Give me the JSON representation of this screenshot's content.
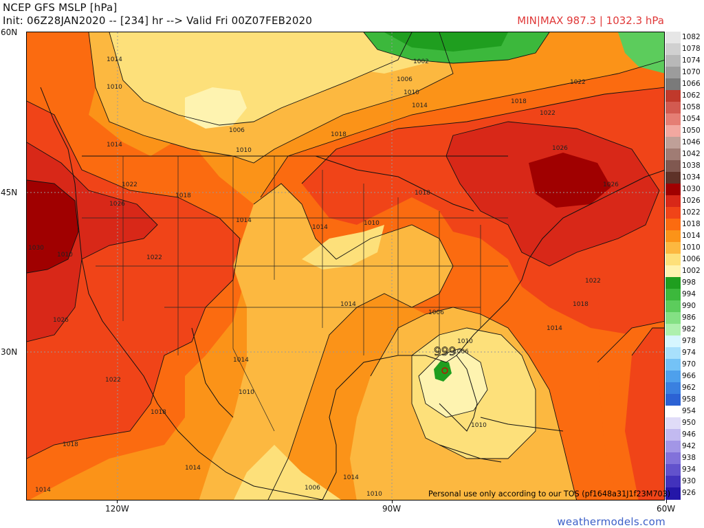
{
  "header": {
    "title": "NCEP GFS MSLP [hPa]",
    "init_line": "Init: 06Z28JAN2020 -- [234] hr --> Valid Fri 00Z07FEB2020",
    "minmax": "MIN|MAX 987.3 | 1032.3 hPa"
  },
  "axes": {
    "lat": [
      "60N",
      "45N",
      "30N"
    ],
    "lon": [
      "120W",
      "90W",
      "60W"
    ]
  },
  "legend": [
    {
      "value": "1082",
      "color": "#e6e6e6"
    },
    {
      "value": "1078",
      "color": "#d0d0d0"
    },
    {
      "value": "1074",
      "color": "#b8b8b8"
    },
    {
      "value": "1070",
      "color": "#9c9c9c"
    },
    {
      "value": "1066",
      "color": "#7a7a7a"
    },
    {
      "value": "1062",
      "color": "#c0392b"
    },
    {
      "value": "1058",
      "color": "#d25a50"
    },
    {
      "value": "1054",
      "color": "#e57e74"
    },
    {
      "value": "1050",
      "color": "#f2a8a0"
    },
    {
      "value": "1046",
      "color": "#bfa098"
    },
    {
      "value": "1042",
      "color": "#a07c74"
    },
    {
      "value": "1038",
      "color": "#805850"
    },
    {
      "value": "1034",
      "color": "#5e3228"
    },
    {
      "value": "1030",
      "color": "#a00000"
    },
    {
      "value": "1026",
      "color": "#d82818"
    },
    {
      "value": "1022",
      "color": "#f04418"
    },
    {
      "value": "1018",
      "color": "#fb6b10"
    },
    {
      "value": "1014",
      "color": "#fb9318"
    },
    {
      "value": "1010",
      "color": "#fcb840"
    },
    {
      "value": "1006",
      "color": "#fde07a"
    },
    {
      "value": "1002",
      "color": "#fef3b0"
    },
    {
      "value": "998",
      "color": "#1f9e1f"
    },
    {
      "value": "994",
      "color": "#3cb83c"
    },
    {
      "value": "990",
      "color": "#5ccc5c"
    },
    {
      "value": "986",
      "color": "#84e084"
    },
    {
      "value": "982",
      "color": "#aef0ae"
    },
    {
      "value": "978",
      "color": "#d6f6ff"
    },
    {
      "value": "974",
      "color": "#a8e0fc"
    },
    {
      "value": "970",
      "color": "#74c2f6"
    },
    {
      "value": "966",
      "color": "#4ea0ec"
    },
    {
      "value": "962",
      "color": "#3a80e0"
    },
    {
      "value": "958",
      "color": "#2c62d4"
    },
    {
      "value": "954",
      "color": "#ffffff"
    },
    {
      "value": "950",
      "color": "#e0dcf8"
    },
    {
      "value": "946",
      "color": "#c2baf0"
    },
    {
      "value": "942",
      "color": "#a296e6"
    },
    {
      "value": "938",
      "color": "#8272da"
    },
    {
      "value": "934",
      "color": "#6252cc"
    },
    {
      "value": "930",
      "color": "#4232bc"
    },
    {
      "value": "926",
      "color": "#2416a8"
    }
  ],
  "contour_labels": [
    "1014",
    "1010",
    "1014",
    "1006",
    "1010",
    "1002",
    "1006",
    "1010",
    "1014",
    "1018",
    "1022",
    "1026",
    "1018",
    "1022",
    "1026",
    "1030",
    "1026",
    "1022",
    "1018",
    "1014",
    "1010",
    "1014",
    "1018",
    "1022",
    "1026",
    "1022",
    "1018",
    "1014",
    "1010",
    "1014",
    "1010",
    "1006",
    "1006",
    "1010",
    "1014",
    "1018",
    "1014",
    "1022",
    "1018",
    "1010",
    "1014",
    "1006",
    "1010",
    "1014"
  ],
  "low_center": "999",
  "footer": {
    "tos": "Personal use only according to our TOS (pf1648a31J1f23M703)",
    "site": "weathermodels.com"
  }
}
